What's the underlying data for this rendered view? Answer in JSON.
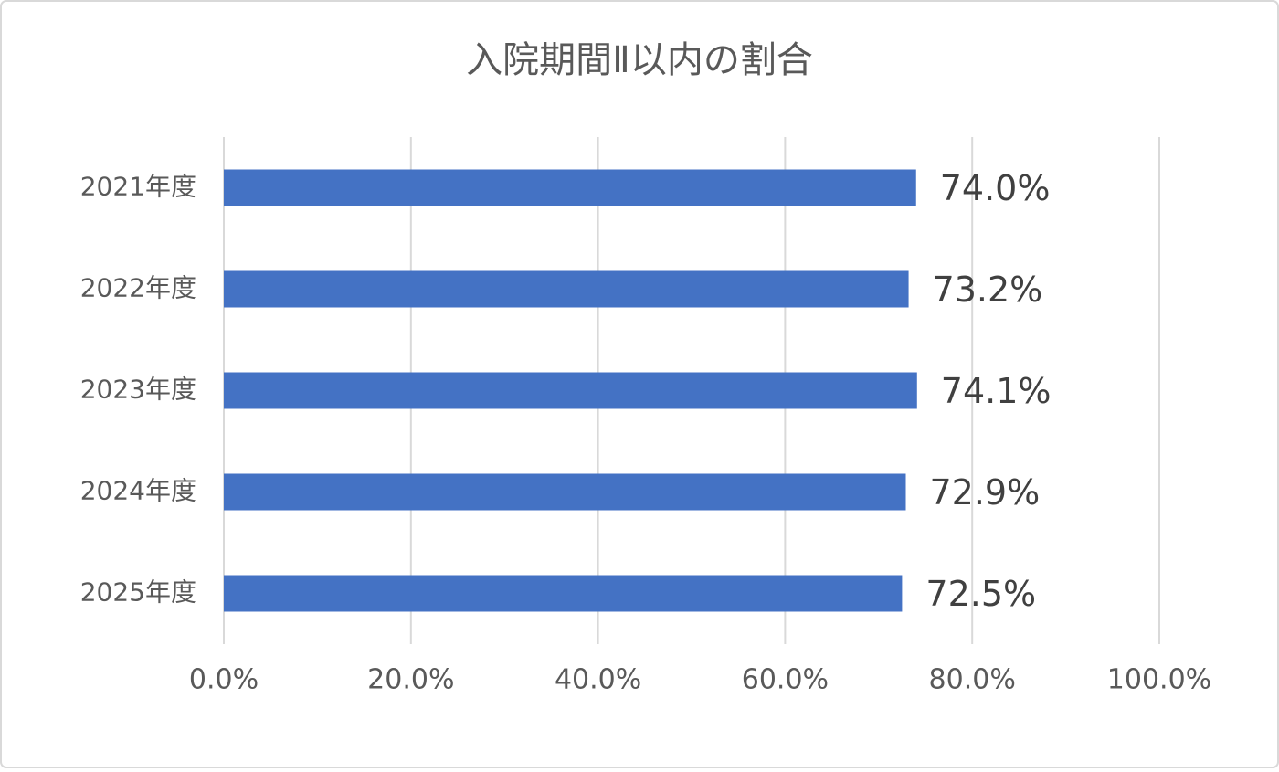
{
  "chart_data": {
    "type": "bar",
    "orientation": "horizontal",
    "title": "入院期間Ⅱ以内の割合",
    "categories": [
      "2021年度",
      "2022年度",
      "2023年度",
      "2024年度",
      "2025年度"
    ],
    "values": [
      74.0,
      73.2,
      74.1,
      72.9,
      72.5
    ],
    "value_labels": [
      "74.0%",
      "73.2%",
      "74.1%",
      "72.9%",
      "72.5%"
    ],
    "color": "#4472c4",
    "xlim": [
      0,
      100
    ],
    "xticks": [
      {
        "value": 0,
        "label": "0.0%"
      },
      {
        "value": 20,
        "label": "20.0%"
      },
      {
        "value": 40,
        "label": "40.0%"
      },
      {
        "value": 60,
        "label": "60.0%"
      },
      {
        "value": 80,
        "label": "80.0%"
      },
      {
        "value": 100,
        "label": "100.0%"
      }
    ],
    "grid": true
  }
}
